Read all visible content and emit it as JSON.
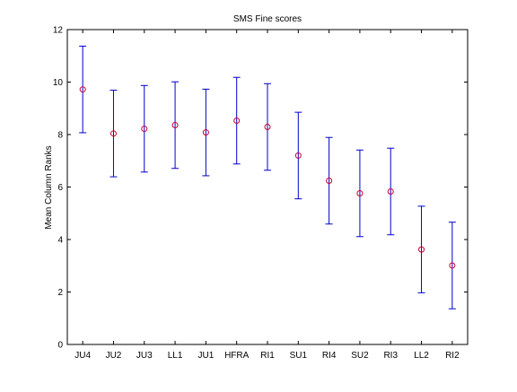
{
  "chart_data": {
    "type": "scatter",
    "title": "SMS Fine scores",
    "xlabel": "",
    "ylabel": "Mean Column Ranks",
    "categories": [
      "JU4",
      "JU2",
      "JU3",
      "LL1",
      "JU1",
      "HFRA",
      "RI1",
      "SU1",
      "RI4",
      "SU2",
      "RI3",
      "LL2",
      "RI2"
    ],
    "series": [
      {
        "means": [
          9.72,
          8.04,
          8.22,
          8.36,
          8.08,
          8.53,
          8.29,
          7.2,
          6.24,
          5.76,
          5.83,
          3.62,
          3.01
        ],
        "lower": [
          8.07,
          6.39,
          6.57,
          6.71,
          6.43,
          6.88,
          6.64,
          5.55,
          4.59,
          4.11,
          4.18,
          1.97,
          1.36
        ],
        "upper": [
          11.37,
          9.69,
          9.87,
          10.01,
          9.73,
          10.18,
          9.94,
          8.85,
          7.89,
          7.41,
          7.48,
          5.27,
          4.66
        ]
      }
    ],
    "ylim": [
      0,
      12
    ],
    "yticks": [
      0,
      2,
      4,
      6,
      8,
      10,
      12
    ],
    "grid": false,
    "colors": {
      "marker": "#cc0033",
      "errorbar": "#0000cc",
      "axes": "#000000"
    }
  }
}
